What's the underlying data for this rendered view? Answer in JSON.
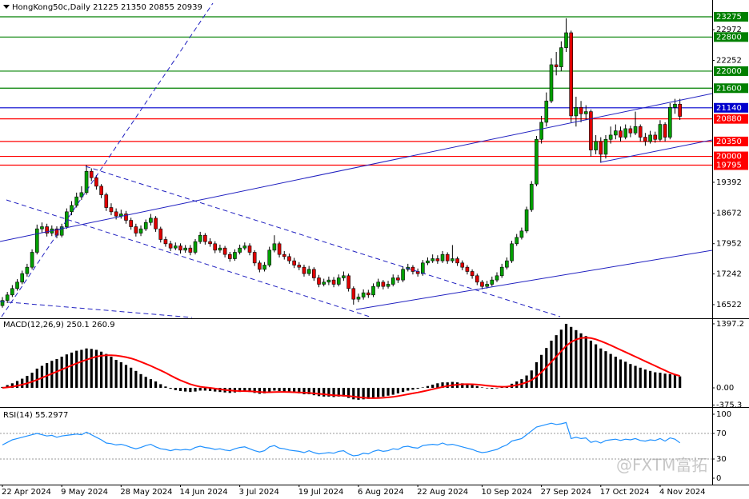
{
  "chart_data": [
    {
      "type": "candlestick",
      "title": "HongKong50c,Daily 21225 21350 20855 20939",
      "watermark": "@FXTM富拓",
      "categories": [
        "22 Apr 2024",
        null,
        null,
        null,
        null,
        null,
        null,
        null,
        null,
        null,
        null,
        null,
        "9 May 2024",
        null,
        null,
        null,
        null,
        null,
        null,
        null,
        null,
        null,
        null,
        null,
        "28 May 2024",
        null,
        null,
        null,
        null,
        null,
        null,
        null,
        null,
        null,
        null,
        null,
        "14 Jun 2024",
        null,
        null,
        null,
        null,
        null,
        null,
        null,
        null,
        null,
        null,
        null,
        "3 Jul 2024",
        null,
        null,
        null,
        null,
        null,
        null,
        null,
        null,
        null,
        null,
        null,
        "19 Jul 2024",
        null,
        null,
        null,
        null,
        null,
        null,
        null,
        null,
        null,
        null,
        null,
        "6 Aug 2024",
        null,
        null,
        null,
        null,
        null,
        null,
        null,
        null,
        null,
        null,
        null,
        "22 Aug 2024",
        null,
        null,
        null,
        null,
        null,
        null,
        null,
        null,
        null,
        null,
        null,
        null,
        "10 Sep 2024",
        null,
        null,
        null,
        null,
        null,
        null,
        null,
        null,
        null,
        null,
        null,
        "27 Sep 2024",
        null,
        null,
        null,
        null,
        null,
        null,
        null,
        null,
        null,
        null,
        null,
        "17 Oct 2024",
        null,
        null,
        null,
        null,
        null,
        null,
        null,
        null,
        null,
        null,
        null,
        "4 Nov 2024",
        null,
        null,
        null,
        null
      ],
      "open": [
        16500,
        16620,
        16750,
        16900,
        17050,
        17250,
        17400,
        17750,
        18300,
        18350,
        18200,
        18300,
        18150,
        18350,
        18700,
        18850,
        19050,
        19150,
        19650,
        19500,
        19300,
        19100,
        18800,
        18700,
        18600,
        18650,
        18500,
        18350,
        18200,
        18300,
        18450,
        18550,
        18300,
        18050,
        17950,
        17850,
        17900,
        17800,
        17850,
        17750,
        18000,
        18150,
        18000,
        17950,
        17800,
        17850,
        17700,
        17600,
        17750,
        17850,
        17900,
        17750,
        17500,
        17350,
        17450,
        17800,
        17950,
        17700,
        17650,
        17550,
        17450,
        17400,
        17250,
        17350,
        17150,
        17000,
        17050,
        17100,
        17000,
        17150,
        17200,
        16900,
        16650,
        16700,
        16800,
        16750,
        16950,
        17050,
        16950,
        17000,
        17150,
        17100,
        17350,
        17400,
        17300,
        17250,
        17500,
        17550,
        17600,
        17550,
        17700,
        17550,
        17600,
        17500,
        17400,
        17300,
        17200,
        17050,
        16950,
        17000,
        17100,
        17200,
        17400,
        17550,
        17950,
        18100,
        18250,
        18750,
        19350,
        20400,
        20800,
        21300,
        22150,
        22100,
        22550,
        22900,
        20950,
        21150,
        21000,
        21050,
        20150,
        20350,
        20050,
        20400,
        20500,
        20600,
        20450,
        20650,
        20550,
        20700,
        20450,
        20350,
        20500,
        20400,
        20750,
        20450,
        21150,
        21225
      ],
      "high": [
        16700,
        16820,
        16980,
        17120,
        17320,
        17480,
        17820,
        18400,
        18450,
        18420,
        18380,
        18360,
        18420,
        18780,
        18950,
        19150,
        19300,
        19800,
        19720,
        19560,
        19350,
        19150,
        18900,
        18780,
        18750,
        18720,
        18560,
        18420,
        18380,
        18520,
        18650,
        18600,
        18350,
        18120,
        18020,
        17980,
        17960,
        17920,
        17920,
        18060,
        18230,
        18200,
        18080,
        18010,
        17930,
        17900,
        17760,
        17820,
        17930,
        17980,
        17960,
        17800,
        17560,
        17520,
        17880,
        18150,
        18000,
        17780,
        17720,
        17620,
        17520,
        17460,
        17430,
        17400,
        17220,
        17130,
        17180,
        17170,
        17230,
        17300,
        17250,
        16950,
        16780,
        16880,
        16870,
        17020,
        17130,
        17100,
        17080,
        17230,
        17220,
        17420,
        17480,
        17450,
        17370,
        17570,
        17630,
        17700,
        17680,
        17780,
        17750,
        17920,
        17650,
        17560,
        17450,
        17350,
        17250,
        17100,
        17080,
        17180,
        17280,
        17480,
        17630,
        18020,
        18180,
        18330,
        18820,
        19420,
        20480,
        20950,
        21500,
        22300,
        22450,
        22700,
        23240,
        22950,
        21400,
        21300,
        21200,
        21100,
        20500,
        20450,
        20500,
        20700,
        20750,
        20700,
        20750,
        20720,
        21050,
        20750,
        20550,
        20600,
        20580,
        20850,
        20800,
        21250,
        21350,
        21350
      ],
      "low": [
        16450,
        16560,
        16700,
        16850,
        17000,
        17180,
        17350,
        17700,
        18200,
        18120,
        18130,
        18080,
        18100,
        18300,
        18620,
        18800,
        18980,
        19100,
        19420,
        19220,
        19020,
        18720,
        18620,
        18520,
        18540,
        18420,
        18280,
        18120,
        18130,
        18250,
        18380,
        18230,
        17980,
        17880,
        17780,
        17800,
        17720,
        17740,
        17680,
        17700,
        17950,
        17930,
        17880,
        17730,
        17740,
        17630,
        17530,
        17550,
        17700,
        17800,
        17680,
        17430,
        17280,
        17300,
        17400,
        17750,
        17630,
        17580,
        17480,
        17380,
        17330,
        17180,
        17200,
        17080,
        16930,
        16950,
        16980,
        16930,
        16950,
        17080,
        16830,
        16522,
        16580,
        16640,
        16680,
        16700,
        16900,
        16880,
        16900,
        16950,
        17030,
        17050,
        17300,
        17230,
        17180,
        17200,
        17450,
        17500,
        17480,
        17500,
        17480,
        17500,
        17430,
        17330,
        17230,
        17130,
        16980,
        16880,
        16900,
        16950,
        17050,
        17150,
        17350,
        17500,
        17900,
        18050,
        18200,
        18700,
        19300,
        20300,
        20700,
        21250,
        21900,
        22000,
        22450,
        20800,
        20700,
        20800,
        20850,
        20000,
        20050,
        19850,
        19950,
        20300,
        20400,
        20350,
        20400,
        20450,
        20500,
        20350,
        20250,
        20300,
        20320,
        20350,
        20350,
        20400,
        21000,
        20855
      ],
      "close": [
        16620,
        16750,
        16900,
        17050,
        17250,
        17400,
        17750,
        18300,
        18350,
        18200,
        18300,
        18150,
        18350,
        18700,
        18850,
        19050,
        19150,
        19650,
        19500,
        19300,
        19100,
        18800,
        18700,
        18600,
        18650,
        18500,
        18350,
        18200,
        18300,
        18450,
        18550,
        18300,
        18050,
        17950,
        17850,
        17900,
        17800,
        17850,
        17750,
        18000,
        18150,
        18000,
        17950,
        17800,
        17850,
        17700,
        17600,
        17750,
        17850,
        17900,
        17750,
        17500,
        17350,
        17450,
        17800,
        17950,
        17700,
        17650,
        17550,
        17450,
        17400,
        17250,
        17350,
        17150,
        17000,
        17050,
        17100,
        17000,
        17150,
        17200,
        16900,
        16650,
        16700,
        16800,
        16750,
        16950,
        17050,
        16950,
        17000,
        17150,
        17100,
        17350,
        17400,
        17300,
        17250,
        17500,
        17550,
        17600,
        17550,
        17700,
        17550,
        17600,
        17500,
        17400,
        17300,
        17200,
        17050,
        16950,
        17000,
        17100,
        17200,
        17400,
        17550,
        17950,
        18100,
        18250,
        18750,
        19350,
        20400,
        20800,
        21300,
        22150,
        22100,
        22550,
        22900,
        20950,
        21150,
        21000,
        21050,
        20150,
        20350,
        20050,
        20400,
        20500,
        20600,
        20450,
        20650,
        20550,
        20700,
        20450,
        20350,
        20500,
        20400,
        20750,
        20450,
        21150,
        21225,
        20939
      ],
      "bull_color": "#00a000",
      "bear_color": "#e00000",
      "ylim": [
        16221,
        23575
      ],
      "yticks": [
        22972,
        22252,
        19392,
        18672,
        17952,
        17242,
        16522
      ],
      "levels": [
        {
          "value": 23275,
          "color": "#008000"
        },
        {
          "value": 22800,
          "color": "#008000"
        },
        {
          "value": 22000,
          "color": "#008000"
        },
        {
          "value": 21600,
          "color": "#008000"
        },
        {
          "value": 21140,
          "color": "#0000cd"
        },
        {
          "value": 20880,
          "color": "#ff0000"
        },
        {
          "value": 20350,
          "color": "#ff0000"
        },
        {
          "value": 20000,
          "color": "#ff0000"
        },
        {
          "value": 19795,
          "color": "#ff0000"
        }
      ]
    },
    {
      "type": "macd",
      "title": "MACD(12,26,9) 250.1 260.9",
      "values": [
        20,
        60,
        100,
        150,
        200,
        260,
        330,
        420,
        480,
        540,
        590,
        630,
        680,
        730,
        770,
        810,
        830,
        860,
        850,
        830,
        790,
        740,
        680,
        610,
        560,
        500,
        440,
        370,
        300,
        240,
        190,
        140,
        80,
        30,
        -20,
        -50,
        -70,
        -80,
        -90,
        -80,
        -60,
        -60,
        -70,
        -80,
        -90,
        -100,
        -110,
        -100,
        -90,
        -80,
        -90,
        -110,
        -130,
        -120,
        -90,
        -60,
        -70,
        -80,
        -100,
        -110,
        -120,
        -140,
        -140,
        -160,
        -180,
        -190,
        -190,
        -200,
        -190,
        -190,
        -220,
        -250,
        -260,
        -250,
        -240,
        -220,
        -200,
        -190,
        -170,
        -150,
        -120,
        -90,
        -60,
        -40,
        -20,
        10,
        40,
        70,
        100,
        120,
        120,
        130,
        120,
        100,
        80,
        60,
        40,
        10,
        -10,
        -20,
        -10,
        10,
        40,
        90,
        140,
        190,
        270,
        380,
        560,
        720,
        870,
        1030,
        1150,
        1270,
        1397.2,
        1330,
        1260,
        1190,
        1130,
        1030,
        950,
        860,
        800,
        740,
        680,
        620,
        570,
        520,
        480,
        440,
        400,
        370,
        340,
        330,
        310,
        300,
        280,
        250.1
      ],
      "color": "#000000",
      "signal": [
        0,
        10,
        25,
        45,
        70,
        100,
        135,
        175,
        220,
        265,
        310,
        355,
        400,
        445,
        490,
        535,
        575,
        615,
        650,
        680,
        700,
        710,
        710,
        705,
        690,
        670,
        645,
        610,
        570,
        525,
        480,
        430,
        380,
        330,
        270,
        215,
        165,
        120,
        80,
        50,
        25,
        10,
        0,
        -15,
        -30,
        -45,
        -55,
        -65,
        -70,
        -72,
        -75,
        -80,
        -88,
        -95,
        -95,
        -90,
        -88,
        -88,
        -90,
        -95,
        -100,
        -105,
        -112,
        -120,
        -130,
        -140,
        -150,
        -160,
        -165,
        -170,
        -180,
        -190,
        -205,
        -215,
        -222,
        -225,
        -222,
        -216,
        -208,
        -196,
        -180,
        -160,
        -140,
        -120,
        -100,
        -78,
        -55,
        -30,
        -5,
        20,
        40,
        58,
        70,
        78,
        80,
        78,
        72,
        62,
        50,
        38,
        28,
        24,
        27,
        40,
        60,
        85,
        120,
        170,
        245,
        340,
        450,
        565,
        685,
        800,
        915,
        1000,
        1055,
        1085,
        1095,
        1085,
        1060,
        1020,
        975,
        930,
        880,
        830,
        780,
        730,
        680,
        630,
        580,
        530,
        480,
        430,
        380,
        330,
        290,
        260.9
      ],
      "signal_color": "#ff0000",
      "ylim": [
        -401,
        1501
      ],
      "yticks": [
        1397.2,
        {
          "value": 0,
          "label": "0.00"
        },
        -375.3
      ]
    },
    {
      "type": "line",
      "title": "RSI(14) 55.2977",
      "values": [
        52,
        56,
        60,
        62,
        64,
        66,
        68,
        70,
        68,
        66,
        67,
        64,
        66,
        67,
        68,
        69,
        68,
        72,
        68,
        64,
        60,
        55,
        54,
        52,
        53,
        51,
        48,
        46,
        48,
        51,
        53,
        49,
        46,
        45,
        43,
        45,
        44,
        45,
        44,
        48,
        50,
        48,
        47,
        45,
        46,
        44,
        43,
        46,
        48,
        49,
        46,
        43,
        41,
        43,
        49,
        51,
        47,
        46,
        44,
        43,
        42,
        40,
        43,
        40,
        38,
        39,
        40,
        39,
        42,
        43,
        38,
        35,
        36,
        39,
        38,
        42,
        44,
        42,
        43,
        46,
        45,
        49,
        50,
        48,
        47,
        51,
        52,
        53,
        52,
        55,
        52,
        53,
        51,
        49,
        47,
        45,
        42,
        40,
        41,
        43,
        45,
        49,
        52,
        58,
        60,
        62,
        68,
        74,
        80,
        82,
        84,
        86,
        84,
        85,
        87,
        62,
        64,
        62,
        63,
        56,
        58,
        55,
        59,
        60,
        61,
        59,
        61,
        60,
        62,
        59,
        58,
        60,
        59,
        62,
        58,
        63,
        61,
        55.2977
      ],
      "color": "#1e90ff",
      "ylim": [
        -10,
        110
      ],
      "yticks": [
        100,
        70,
        30,
        0
      ],
      "dotted_levels": [
        70,
        30
      ]
    }
  ]
}
